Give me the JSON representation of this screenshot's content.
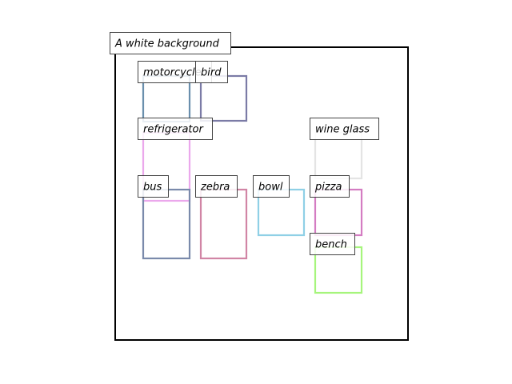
{
  "scene": {
    "caption": "A white background",
    "frame_color": "#000000"
  },
  "objects": [
    {
      "key": "motorcycle",
      "label": "motorcycle",
      "color": "#6a8fad"
    },
    {
      "key": "bird",
      "label": "bird",
      "color": "#7b7ba6"
    },
    {
      "key": "refrigerator",
      "label": "refrigerator",
      "color": "#eba8ec"
    },
    {
      "key": "wine-glass",
      "label": "wine glass",
      "color": "#e4e4e4"
    },
    {
      "key": "bus",
      "label": "bus",
      "color": "#7a8aab"
    },
    {
      "key": "zebra",
      "label": "zebra",
      "color": "#d185a5"
    },
    {
      "key": "bowl",
      "label": "bowl",
      "color": "#8fd0e6"
    },
    {
      "key": "pizza",
      "label": "pizza",
      "color": "#d47cc2"
    },
    {
      "key": "bench",
      "label": "bench",
      "color": "#a6f57c"
    }
  ]
}
